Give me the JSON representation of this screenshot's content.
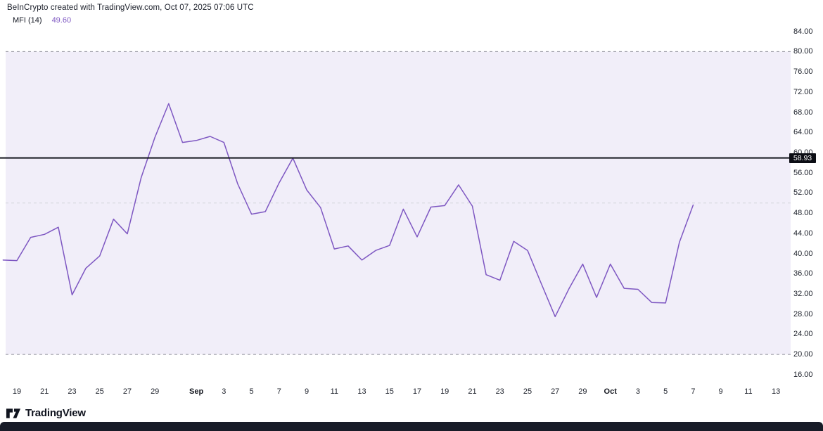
{
  "header": {
    "attribution": "BeInCrypto created with TradingView.com, Oct 07, 2025 07:06 UTC",
    "indicator": {
      "title": "MFI (14)",
      "value": "49.60"
    }
  },
  "chart_data": {
    "type": "line",
    "title": "MFI (14)",
    "xlabel": "",
    "ylabel": "",
    "y_axis": {
      "min": 16,
      "max": 84,
      "tick_step": 4
    },
    "y_ticks": [
      "84.00",
      "80.00",
      "76.00",
      "72.00",
      "68.00",
      "64.00",
      "60.00",
      "56.00",
      "52.00",
      "48.00",
      "44.00",
      "40.00",
      "36.00",
      "32.00",
      "28.00",
      "24.00",
      "20.00",
      "16.00"
    ],
    "x_ticks": [
      {
        "label": "19",
        "idx": 1
      },
      {
        "label": "21",
        "idx": 3
      },
      {
        "label": "23",
        "idx": 5
      },
      {
        "label": "25",
        "idx": 7
      },
      {
        "label": "27",
        "idx": 9
      },
      {
        "label": "29",
        "idx": 11
      },
      {
        "label": "Sep",
        "idx": 14,
        "month": true
      },
      {
        "label": "3",
        "idx": 16
      },
      {
        "label": "5",
        "idx": 18
      },
      {
        "label": "7",
        "idx": 20
      },
      {
        "label": "9",
        "idx": 22
      },
      {
        "label": "11",
        "idx": 24
      },
      {
        "label": "13",
        "idx": 26
      },
      {
        "label": "15",
        "idx": 28
      },
      {
        "label": "17",
        "idx": 30
      },
      {
        "label": "19",
        "idx": 32
      },
      {
        "label": "21",
        "idx": 34
      },
      {
        "label": "23",
        "idx": 36
      },
      {
        "label": "25",
        "idx": 38
      },
      {
        "label": "27",
        "idx": 40
      },
      {
        "label": "29",
        "idx": 42
      },
      {
        "label": "Oct",
        "idx": 44,
        "month": true
      },
      {
        "label": "3",
        "idx": 46
      },
      {
        "label": "5",
        "idx": 48
      },
      {
        "label": "7",
        "idx": 50
      },
      {
        "label": "9",
        "idx": 52
      },
      {
        "label": "11",
        "idx": 54
      },
      {
        "label": "13",
        "idx": 56
      }
    ],
    "series": [
      {
        "name": "MFI",
        "color": "#7e57c2",
        "x": [
          "Aug 18",
          "Aug 19",
          "Aug 20",
          "Aug 21",
          "Aug 22",
          "Aug 23",
          "Aug 24",
          "Aug 25",
          "Aug 26",
          "Aug 27",
          "Aug 28",
          "Aug 29",
          "Aug 30",
          "Aug 31",
          "Sep 1",
          "Sep 2",
          "Sep 3",
          "Sep 4",
          "Sep 5",
          "Sep 6",
          "Sep 7",
          "Sep 8",
          "Sep 9",
          "Sep 10",
          "Sep 11",
          "Sep 12",
          "Sep 13",
          "Sep 14",
          "Sep 15",
          "Sep 16",
          "Sep 17",
          "Sep 18",
          "Sep 19",
          "Sep 20",
          "Sep 21",
          "Sep 22",
          "Sep 23",
          "Sep 24",
          "Sep 25",
          "Sep 26",
          "Sep 27",
          "Sep 28",
          "Sep 29",
          "Sep 30",
          "Oct 1",
          "Oct 2",
          "Oct 3",
          "Oct 4",
          "Oct 5",
          "Oct 6",
          "Oct 7"
        ],
        "values": [
          38.7,
          38.6,
          43.2,
          43.8,
          45.2,
          31.8,
          37.1,
          39.5,
          46.8,
          43.9,
          55.0,
          63.0,
          69.7,
          62.0,
          62.4,
          63.2,
          62.0,
          53.8,
          47.8,
          48.3,
          54.0,
          58.9,
          52.6,
          49.1,
          40.9,
          41.5,
          38.7,
          40.6,
          41.6,
          48.8,
          43.3,
          49.2,
          49.5,
          53.6,
          49.4,
          35.8,
          34.7,
          42.4,
          40.6,
          34.0,
          27.5,
          33.0,
          37.9,
          31.3,
          37.9,
          33.1,
          32.9,
          30.3,
          30.2,
          42.2,
          49.6
        ]
      }
    ],
    "band": {
      "from": 20,
      "to": 80,
      "color": "#f1eef9"
    },
    "hlines": [
      {
        "value": 80,
        "style": "dashed",
        "color": "#8d8f99"
      },
      {
        "value": 50,
        "style": "dashed",
        "color": "#d2d3da"
      },
      {
        "value": 20,
        "style": "dashed",
        "color": "#8d8f99"
      }
    ],
    "price_line": {
      "value": 58.93,
      "label": "58.93",
      "color": "#15171f"
    },
    "legend_position": "top-left",
    "grid": false
  },
  "footer": {
    "logo_text": "TradingView"
  },
  "colors": {
    "line": "#7e57c2",
    "band": "#f1eef9",
    "value_text": "#7e57c2",
    "axis_text": "#20242e",
    "price_label_bg": "#0b0d14",
    "bottom_bar": "#181c28"
  }
}
